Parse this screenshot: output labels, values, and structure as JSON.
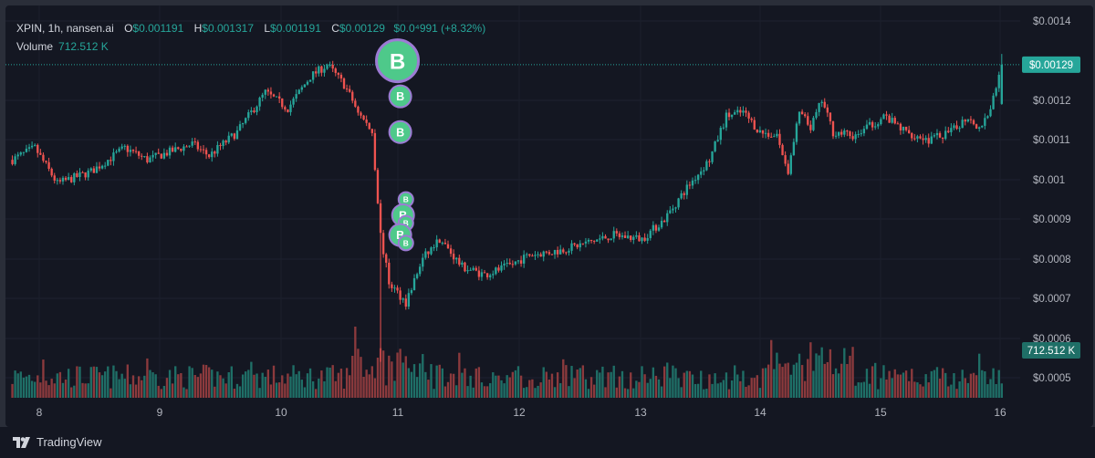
{
  "legend": {
    "symbol": "XPIN, 1h, nansen.ai",
    "open_label": "O",
    "open": "$0.001191",
    "high_label": "H",
    "high": "$0.001317",
    "low_label": "L",
    "low": "$0.001191",
    "close_label": "C",
    "close": "$0.00129",
    "change": "$0.0⁴991 (+8.32%)"
  },
  "volume_legend": {
    "label": "Volume",
    "value": "712.512 K"
  },
  "price_badge": "$0.00129",
  "volume_badge": "712.512 K",
  "marker_label": "B",
  "branding": {
    "name": "TradingView",
    "logo_icon": "tradingview-logo-icon"
  },
  "colors": {
    "up": "#26a69a",
    "down": "#ef5350",
    "up_volume": "#1f6f67",
    "down_volume": "#8c3a3d",
    "marker_fill": "#4ec98a",
    "marker_stroke": "#9c7bd4",
    "background": "#141722"
  },
  "chart_data": {
    "type": "candlestick",
    "x_tick_labels": [
      "8",
      "9",
      "10",
      "11",
      "12",
      "13",
      "14",
      "15",
      "16"
    ],
    "y_tick_labels": [
      "$0.0014",
      "$0.0012",
      "$0.0011",
      "$0.001",
      "$0.0009",
      "$0.0008",
      "$0.0007",
      "$0.0006",
      "$0.0005"
    ],
    "ylim": [
      0.00045,
      0.00143
    ],
    "last_price": 0.00129,
    "price_anchors": [
      [
        0,
        0.00105
      ],
      [
        8,
        0.00108
      ],
      [
        16,
        0.00099
      ],
      [
        28,
        0.00102
      ],
      [
        40,
        0.00108
      ],
      [
        48,
        0.00105
      ],
      [
        56,
        0.00107
      ],
      [
        64,
        0.00109
      ],
      [
        70,
        0.00106
      ],
      [
        80,
        0.00112
      ],
      [
        90,
        0.00122
      ],
      [
        98,
        0.00118
      ],
      [
        106,
        0.00126
      ],
      [
        112,
        0.00129
      ],
      [
        118,
        0.00124
      ],
      [
        124,
        0.00116
      ],
      [
        128,
        0.00112
      ],
      [
        131,
        0.00086
      ],
      [
        134,
        0.00074
      ],
      [
        140,
        0.00069
      ],
      [
        146,
        0.0008
      ],
      [
        152,
        0.00085
      ],
      [
        160,
        0.00078
      ],
      [
        168,
        0.00076
      ],
      [
        176,
        0.00078
      ],
      [
        184,
        0.00081
      ],
      [
        194,
        0.00082
      ],
      [
        204,
        0.00084
      ],
      [
        214,
        0.00086
      ],
      [
        224,
        0.00085
      ],
      [
        232,
        0.0009
      ],
      [
        240,
        0.00098
      ],
      [
        248,
        0.00105
      ],
      [
        254,
        0.00116
      ],
      [
        260,
        0.00117
      ],
      [
        266,
        0.00112
      ],
      [
        272,
        0.00111
      ],
      [
        276,
        0.00102
      ],
      [
        280,
        0.00117
      ],
      [
        284,
        0.00113
      ],
      [
        288,
        0.0012
      ],
      [
        292,
        0.00112
      ],
      [
        300,
        0.00111
      ],
      [
        310,
        0.00116
      ],
      [
        318,
        0.00112
      ],
      [
        326,
        0.0011
      ],
      [
        334,
        0.00112
      ],
      [
        340,
        0.00116
      ],
      [
        344,
        0.00113
      ],
      [
        348,
        0.00118
      ],
      [
        352,
        0.00129
      ]
    ],
    "buy_markers": [
      {
        "t": 137,
        "price": 0.0013,
        "size": "large"
      },
      {
        "t": 138,
        "price": 0.00121,
        "size": "medium"
      },
      {
        "t": 138,
        "price": 0.00112,
        "size": "medium"
      },
      {
        "t": 140,
        "price": 0.00095,
        "size": "small"
      },
      {
        "t": 139,
        "price": 0.00091,
        "size": "medium"
      },
      {
        "t": 140,
        "price": 0.00089,
        "size": "small"
      },
      {
        "t": 138,
        "price": 0.00086,
        "size": "medium"
      },
      {
        "t": 140,
        "price": 0.00084,
        "size": "small"
      }
    ]
  }
}
